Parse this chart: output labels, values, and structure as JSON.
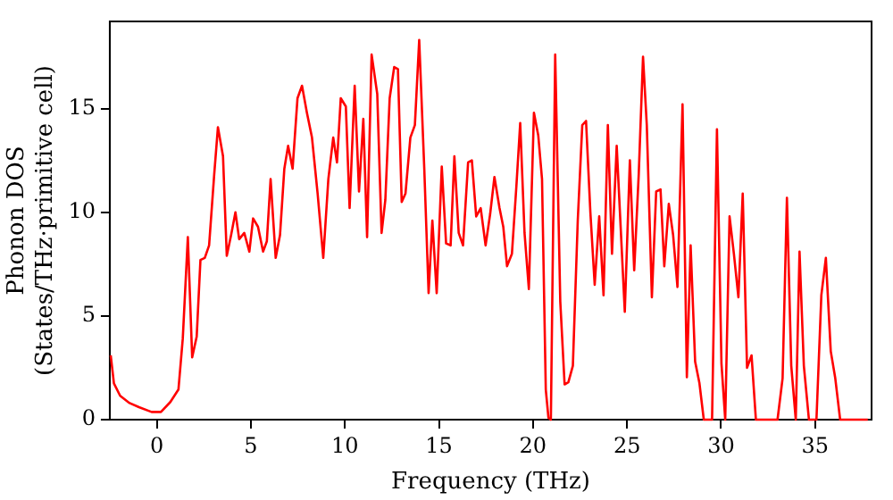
{
  "chart_data": {
    "type": "line",
    "xlabel": "Frequency (THz)",
    "ylabel": "Phonon DOS\n(States/THz·primitive cell)",
    "xlim": [
      -2.5,
      38
    ],
    "ylim": [
      0,
      19.2
    ],
    "xticks": [
      0,
      5,
      10,
      15,
      20,
      25,
      30,
      35
    ],
    "yticks": [
      0,
      5,
      10,
      15
    ],
    "grid": false,
    "legend": false,
    "marker": "none",
    "line_style": "solid",
    "series": [
      {
        "color": "#ff0000",
        "x": [
          -2.45,
          -2.28,
          -1.95,
          -1.45,
          -0.95,
          -0.28,
          0.22,
          0.72,
          1.15,
          1.38,
          1.65,
          1.88,
          2.12,
          2.32,
          2.55,
          2.78,
          3.05,
          3.25,
          3.52,
          3.72,
          3.95,
          4.18,
          4.38,
          4.65,
          4.92,
          5.12,
          5.38,
          5.65,
          5.85,
          6.05,
          6.32,
          6.55,
          6.78,
          6.98,
          7.22,
          7.48,
          7.72,
          7.98,
          8.25,
          8.55,
          8.85,
          9.12,
          9.38,
          9.58,
          9.78,
          10.05,
          10.25,
          10.52,
          10.75,
          10.98,
          11.18,
          11.42,
          11.72,
          11.95,
          12.15,
          12.38,
          12.62,
          12.82,
          13.02,
          13.22,
          13.48,
          13.72,
          13.95,
          14.22,
          14.45,
          14.65,
          14.88,
          15.15,
          15.38,
          15.62,
          15.82,
          16.05,
          16.28,
          16.55,
          16.75,
          16.98,
          17.22,
          17.48,
          17.72,
          17.95,
          18.22,
          18.42,
          18.62,
          18.88,
          19.12,
          19.32,
          19.55,
          19.78,
          20.05,
          20.28,
          20.48,
          20.68,
          20.82,
          20.95,
          21.18,
          21.45,
          21.68,
          21.88,
          22.12,
          22.38,
          22.62,
          22.82,
          23.05,
          23.28,
          23.52,
          23.75,
          23.98,
          24.2,
          24.45,
          24.88,
          25.15,
          25.38,
          25.62,
          25.85,
          26.05,
          26.32,
          26.55,
          26.78,
          26.98,
          27.22,
          27.45,
          27.68,
          27.95,
          28.18,
          28.38,
          28.62,
          28.85,
          29.08,
          29.52,
          29.78,
          30.02,
          30.22,
          30.45,
          30.68,
          30.92,
          31.15,
          31.38,
          31.62,
          31.85,
          33.0,
          33.27,
          33.5,
          33.73,
          33.97,
          34.17,
          34.4,
          34.67,
          35.07,
          35.33,
          35.57,
          35.83,
          36.07,
          36.33,
          37.8
        ],
        "values": [
          3.1,
          1.75,
          1.15,
          0.8,
          0.6,
          0.37,
          0.37,
          0.85,
          1.45,
          3.9,
          8.8,
          3.0,
          4.0,
          7.7,
          7.8,
          8.4,
          11.8,
          14.1,
          12.7,
          7.9,
          8.9,
          10.0,
          8.7,
          9.0,
          8.1,
          9.7,
          9.3,
          8.1,
          8.6,
          11.6,
          7.8,
          8.9,
          12.1,
          13.2,
          12.1,
          15.5,
          16.1,
          14.8,
          13.6,
          10.9,
          7.8,
          11.6,
          13.6,
          12.4,
          15.5,
          15.1,
          10.2,
          16.1,
          11.0,
          14.5,
          8.8,
          17.6,
          15.7,
          9.0,
          10.6,
          15.5,
          17.0,
          16.9,
          10.5,
          10.9,
          13.6,
          14.2,
          18.3,
          12.1,
          6.1,
          9.6,
          6.1,
          12.2,
          8.5,
          8.4,
          12.7,
          9.0,
          8.4,
          12.4,
          12.5,
          9.8,
          10.2,
          8.4,
          9.9,
          11.7,
          10.2,
          9.3,
          7.4,
          8.0,
          11.3,
          14.3,
          9.0,
          6.3,
          14.8,
          13.7,
          11.6,
          1.45,
          0.1,
          0,
          17.6,
          5.7,
          1.7,
          1.8,
          2.6,
          9.6,
          14.2,
          14.4,
          10.0,
          6.5,
          9.8,
          6.0,
          14.2,
          8.0,
          13.2,
          5.2,
          12.5,
          7.2,
          11.8,
          17.5,
          14.2,
          5.9,
          11.0,
          11.1,
          7.4,
          10.4,
          8.9,
          6.4,
          15.2,
          2.05,
          8.4,
          2.8,
          1.75,
          0,
          0,
          14.0,
          2.7,
          0,
          9.8,
          8.0,
          5.9,
          10.9,
          2.5,
          3.1,
          0,
          0,
          2.0,
          10.7,
          2.6,
          0,
          8.1,
          2.6,
          0,
          0,
          6.0,
          7.8,
          3.3,
          2.0,
          0,
          0
        ]
      }
    ]
  }
}
